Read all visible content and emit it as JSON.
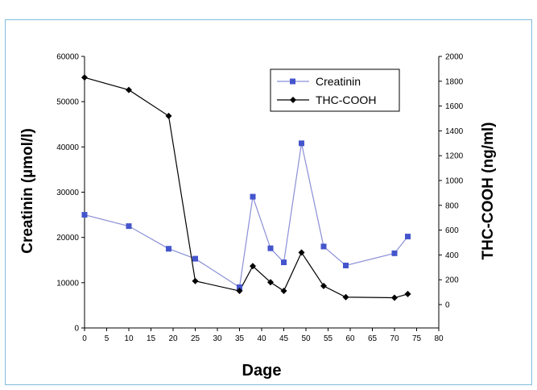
{
  "chart_data": {
    "type": "line",
    "title": "",
    "xlabel": "Dage",
    "ylabel": "Creatinin (µmol/l)",
    "y2label": "THC-COOH (ng/ml)",
    "xlim": [
      0,
      80
    ],
    "ylim": [
      0,
      60000
    ],
    "y2lim": [
      0,
      2000
    ],
    "x_ticks": [
      0,
      5,
      10,
      15,
      20,
      25,
      30,
      35,
      40,
      45,
      50,
      55,
      60,
      65,
      70,
      75,
      80
    ],
    "y_ticks": [
      0,
      10000,
      20000,
      30000,
      40000,
      50000,
      60000
    ],
    "y2_ticks": [
      0,
      200,
      400,
      600,
      800,
      1000,
      1200,
      1400,
      1600,
      1800,
      2000
    ],
    "grid": false,
    "legend_position": "top-right",
    "series": [
      {
        "name": "Creatinin",
        "axis": "left",
        "color": "#8a8fd6",
        "marker_color": "#4455cc",
        "marker": "square",
        "x": [
          0,
          10,
          19,
          25,
          35,
          38,
          42,
          45,
          49,
          54,
          59,
          70,
          73
        ],
        "y": [
          25000,
          22500,
          17500,
          15300,
          9000,
          29000,
          17600,
          14500,
          40800,
          18000,
          13800,
          16500,
          20200
        ]
      },
      {
        "name": "THC-COOH",
        "axis": "right",
        "color": "#000000",
        "marker_color": "#000000",
        "marker": "diamond",
        "x": [
          0,
          10,
          19,
          25,
          35,
          38,
          42,
          45,
          49,
          54,
          59,
          70,
          73
        ],
        "y": [
          1830,
          1730,
          1520,
          190,
          110,
          310,
          180,
          110,
          420,
          150,
          60,
          55,
          85
        ]
      }
    ]
  }
}
